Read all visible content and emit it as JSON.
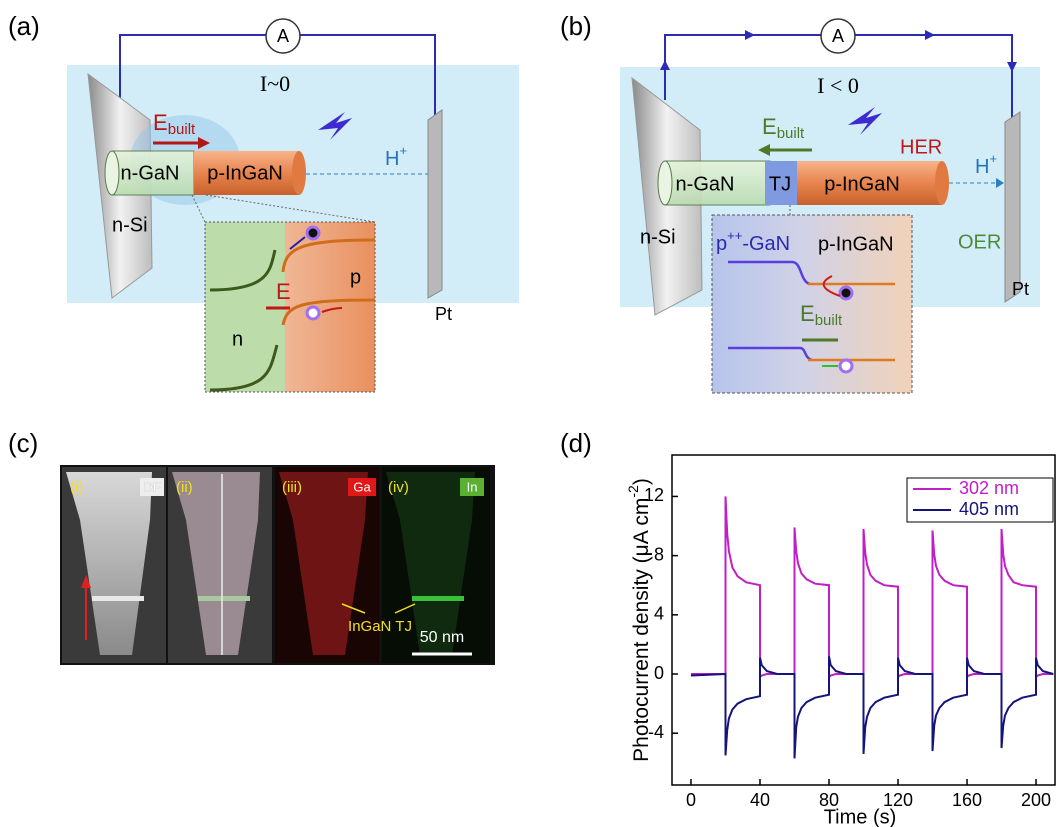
{
  "figure": {
    "a": {
      "label": "(a)",
      "ammeter": "A",
      "current": "I~0",
      "field": "E",
      "field_sub": "built",
      "n_gan": "n-GaN",
      "p_ingan": "p-InGaN",
      "proton": "H",
      "proton_sup": "+",
      "substrate": "n-Si",
      "electrode": "Pt",
      "inset_p": "p",
      "inset_n": "n",
      "inset_field": "E"
    },
    "b": {
      "label": "(b)",
      "ammeter": "A",
      "current": "I < 0",
      "field": "E",
      "field_sub": "built",
      "her": "HER",
      "proton": "H",
      "proton_sup": "+",
      "n_gan": "n-GaN",
      "tj": "TJ",
      "p_ingan": "p-InGaN",
      "substrate": "n-Si",
      "oer": "OER",
      "electrode": "Pt",
      "inset_left": "p",
      "inset_left_sup": "++",
      "inset_left_end": "-GaN",
      "inset_right": "p-InGaN",
      "inset_field": "E",
      "inset_field_sub": "built"
    },
    "c": {
      "label": "(c)",
      "tiles": [
        {
          "label": "(i)",
          "tag": "DF"
        },
        {
          "label": "(ii)"
        },
        {
          "label": "(iii)",
          "tag": "Ga"
        },
        {
          "label": "(iv)",
          "tag": "In"
        }
      ],
      "annotation": "InGaN TJ",
      "scale_bar": "50 nm"
    }
  },
  "chart_data": {
    "type": "line",
    "panel_label": "(d)",
    "xlabel": "Time (s)",
    "ylabel": {
      "text": "Photocurrent density (μA cm",
      "sup": "-2",
      "end": ")"
    },
    "x": [
      0,
      20,
      20,
      21,
      22,
      24,
      27,
      32,
      40,
      40,
      41,
      44,
      50,
      60,
      60,
      61,
      62,
      64,
      67,
      72,
      80,
      80,
      81,
      84,
      90,
      100,
      100,
      101,
      102,
      104,
      107,
      112,
      120,
      120,
      121,
      124,
      130,
      140,
      140,
      141,
      142,
      144,
      147,
      152,
      160,
      160,
      161,
      164,
      170,
      180,
      180,
      181,
      182,
      184,
      187,
      192,
      200,
      200,
      201,
      204,
      210
    ],
    "series": [
      {
        "name": "302 nm",
        "color": "#c01fc8",
        "values": [
          0,
          0,
          12,
          9.5,
          8.3,
          7.2,
          6.6,
          6.2,
          6.0,
          -0.2,
          -0.1,
          0,
          0,
          0,
          9.9,
          8.3,
          7.5,
          6.8,
          6.4,
          6.1,
          6.0,
          -0.2,
          -0.1,
          0,
          0,
          0,
          9.8,
          8.2,
          7.4,
          6.7,
          6.3,
          6.0,
          5.9,
          -0.2,
          -0.1,
          0,
          0,
          0,
          9.7,
          8.1,
          7.3,
          6.7,
          6.3,
          6.0,
          5.9,
          -0.2,
          -0.1,
          0,
          0,
          0,
          9.8,
          8.1,
          7.3,
          6.7,
          6.2,
          6.0,
          5.9,
          -0.2,
          -0.1,
          0,
          0
        ]
      },
      {
        "name": "405 nm",
        "color": "#14147a",
        "values": [
          -0.1,
          0,
          -5.5,
          -3.8,
          -3.0,
          -2.4,
          -2.0,
          -1.7,
          -1.5,
          1.1,
          0.6,
          0.2,
          0,
          0,
          -5.7,
          -3.6,
          -2.9,
          -2.3,
          -1.9,
          -1.6,
          -1.4,
          1.2,
          0.6,
          0.2,
          0,
          0,
          -5.4,
          -3.6,
          -2.9,
          -2.3,
          -1.9,
          -1.6,
          -1.4,
          1.1,
          0.6,
          0.2,
          0,
          0,
          -5.2,
          -3.5,
          -2.8,
          -2.3,
          -1.9,
          -1.6,
          -1.4,
          1.1,
          0.6,
          0.2,
          0,
          0,
          -5.0,
          -3.5,
          -2.8,
          -2.3,
          -1.9,
          -1.6,
          -1.4,
          1.1,
          0.6,
          0.2,
          0
        ]
      }
    ],
    "xlim": [
      -11,
      211
    ],
    "ylim": [
      -7.5,
      14.8
    ],
    "xticks": [
      0,
      40,
      80,
      120,
      160,
      200
    ],
    "yticks": [
      -4,
      0,
      4,
      8,
      12
    ],
    "legend": "upper right",
    "grid": false
  }
}
